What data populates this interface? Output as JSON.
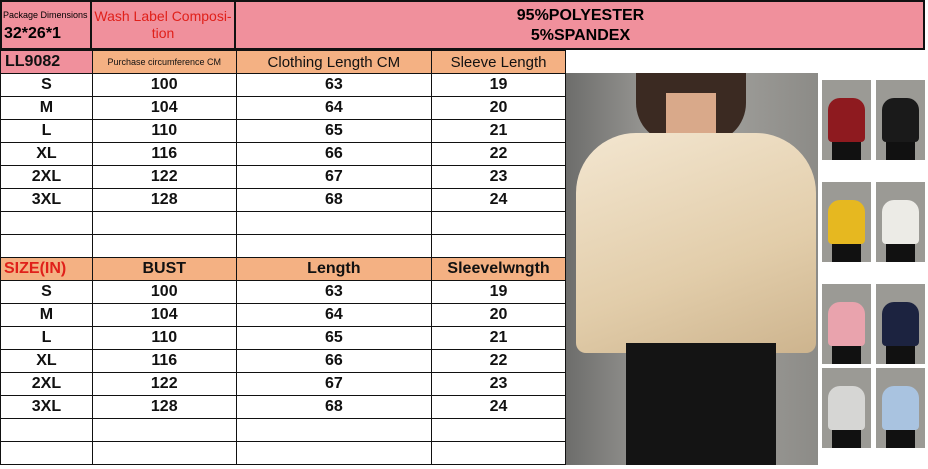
{
  "header": {
    "package_label": "Package Dimensions",
    "package_value": "32*26*1",
    "wash_label": "Wash Label Composi-\ntion",
    "composition_line1": "95%POLYESTER",
    "composition_line2": "5%SPANDEX"
  },
  "table_cm": {
    "model": "LL9082",
    "headers": [
      "Purchase circumference CM",
      "Clothing Length CM",
      "Sleeve Length"
    ],
    "rows": [
      [
        "S",
        "100",
        "63",
        "19"
      ],
      [
        "M",
        "104",
        "64",
        "20"
      ],
      [
        "L",
        "110",
        "65",
        "21"
      ],
      [
        "XL",
        "116",
        "66",
        "22"
      ],
      [
        "2XL",
        "122",
        "67",
        "23"
      ],
      [
        "3XL",
        "128",
        "68",
        "24"
      ]
    ]
  },
  "table_in": {
    "headers": [
      "SIZE(IN)",
      "BUST",
      "Length",
      "Sleevelwngth"
    ],
    "rows": [
      [
        "S",
        "100",
        "63",
        "19"
      ],
      [
        "M",
        "104",
        "64",
        "20"
      ],
      [
        "L",
        "110",
        "65",
        "21"
      ],
      [
        "XL",
        "116",
        "66",
        "22"
      ],
      [
        "2XL",
        "122",
        "67",
        "23"
      ],
      [
        "3XL",
        "128",
        "68",
        "24"
      ]
    ]
  },
  "colors": {
    "header_pink": "#f0909c",
    "header_orange": "#f4b183",
    "accent_red": "#e0201a"
  },
  "color_swatches": [
    "#8e1a1f",
    "#1a1a1a",
    "#e6b820",
    "#ecebe6",
    "#e9a3ad",
    "#1c2340",
    "#d6d6d4",
    "#a9c3e0"
  ]
}
